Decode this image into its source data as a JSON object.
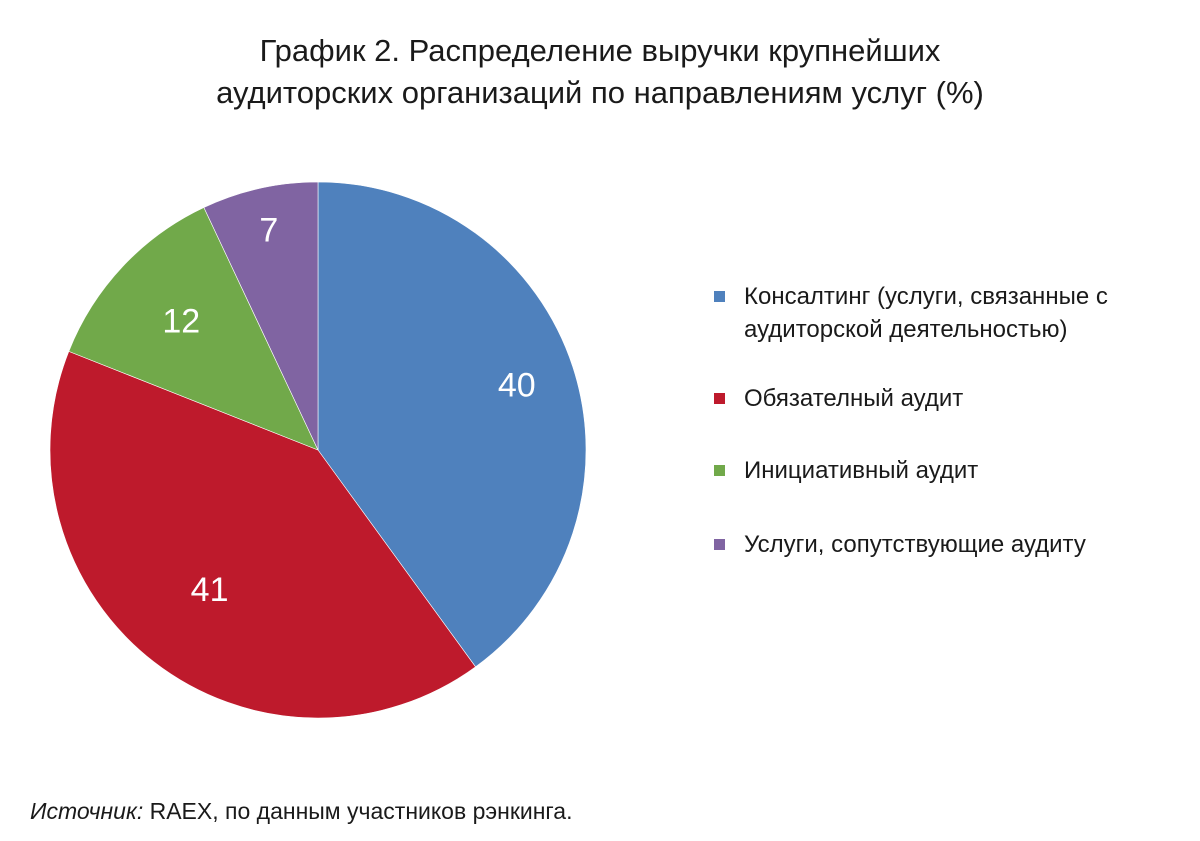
{
  "chart_data": {
    "type": "pie",
    "title_lines": [
      "График 2. Распределение выручки крупнейших",
      "аудиторских организаций по направлениям услуг (%)"
    ],
    "slices": [
      {
        "label": "Консалтинг (услуги, связанные с аудиторской деятельностью)",
        "value": 40,
        "value_label": "40",
        "color": "#4f81bd"
      },
      {
        "label": "Обязателный аудит",
        "value": 41,
        "value_label": "41",
        "color": "#be1a2c"
      },
      {
        "label": "Инициативный аудит",
        "value": 12,
        "value_label": "12",
        "color": "#71a94a"
      },
      {
        "label": "Услуги, сопутствующие аудиту",
        "value": 7,
        "value_label": "7",
        "color": "#8064a2"
      }
    ],
    "legend_position": "right",
    "data_label_color": "#ffffff"
  },
  "source": {
    "prefix": "Источник:",
    "text": " RAEX, по данным участников рэнкинга."
  }
}
